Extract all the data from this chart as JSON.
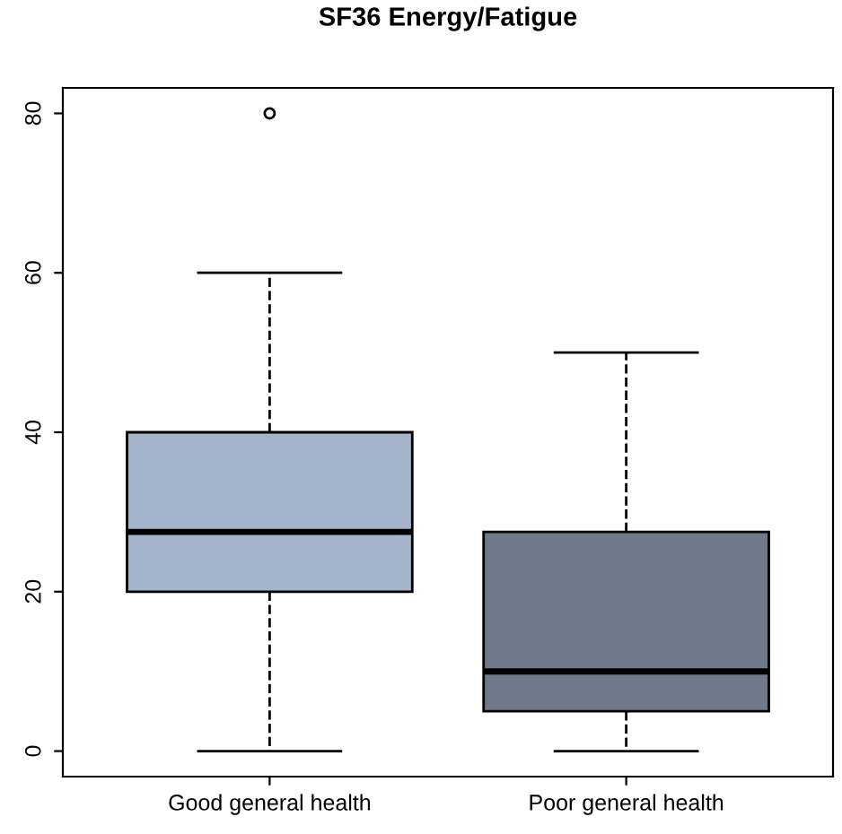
{
  "chart_data": {
    "type": "box",
    "title": "SF36 Energy/Fatigue",
    "categories": [
      "Good general health",
      "Poor general health"
    ],
    "colors": [
      "#a3b4cb",
      "#6e7a89"
    ],
    "boxes": [
      {
        "low": 0,
        "q1": 20,
        "median": 27.5,
        "q3": 40,
        "high": 60,
        "outliers": [
          80
        ]
      },
      {
        "low": 0,
        "q1": 5,
        "median": 10,
        "q3": 27.5,
        "high": 50
      }
    ],
    "ylim": [
      -3.2,
      83.2
    ],
    "yticks": [
      0,
      20,
      40,
      60,
      80
    ],
    "grid": false,
    "line_style": "dashed"
  }
}
